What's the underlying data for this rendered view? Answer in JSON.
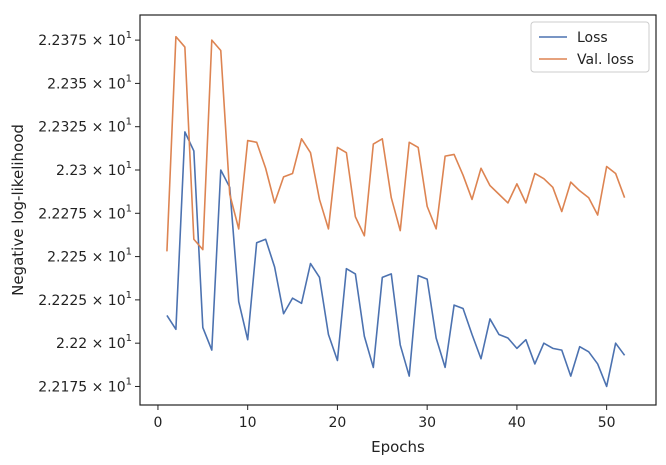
{
  "chart_data": {
    "type": "line",
    "title": "",
    "xlabel": "Epochs",
    "ylabel": "Negative log-likelihood",
    "xlim": [
      -2,
      55.5
    ],
    "ylim": [
      22.1643,
      22.3895
    ],
    "x_ticks": [
      0,
      10,
      20,
      30,
      40,
      50
    ],
    "y_ticks": [
      {
        "value": 22.175,
        "mantissa": "2.2175",
        "base": "10",
        "exp": "1"
      },
      {
        "value": 22.2,
        "mantissa": "2.22",
        "base": "10",
        "exp": "1"
      },
      {
        "value": 22.225,
        "mantissa": "2.2225",
        "base": "10",
        "exp": "1"
      },
      {
        "value": 22.25,
        "mantissa": "2.225",
        "base": "10",
        "exp": "1"
      },
      {
        "value": 22.275,
        "mantissa": "2.2275",
        "base": "10",
        "exp": "1"
      },
      {
        "value": 22.3,
        "mantissa": "2.23",
        "base": "10",
        "exp": "1"
      },
      {
        "value": 22.325,
        "mantissa": "2.2325",
        "base": "10",
        "exp": "1"
      },
      {
        "value": 22.35,
        "mantissa": "2.235",
        "base": "10",
        "exp": "1"
      },
      {
        "value": 22.375,
        "mantissa": "2.2375",
        "base": "10",
        "exp": "1"
      }
    ],
    "grid": false,
    "legend_position": "top-right",
    "x": [
      1,
      2,
      3,
      4,
      5,
      6,
      7,
      8,
      9,
      10,
      11,
      12,
      13,
      14,
      15,
      16,
      17,
      18,
      19,
      20,
      21,
      22,
      23,
      24,
      25,
      26,
      27,
      28,
      29,
      30,
      31,
      32,
      33,
      34,
      35,
      36,
      37,
      38,
      39,
      40,
      41,
      42,
      43,
      44,
      45,
      46,
      47,
      48,
      49,
      50,
      51,
      52
    ],
    "series": [
      {
        "name": "Loss",
        "color": "#4c72b0",
        "values": [
          22.216,
          22.208,
          22.322,
          22.311,
          22.209,
          22.196,
          22.3,
          22.29,
          22.224,
          22.202,
          22.258,
          22.26,
          22.244,
          22.217,
          22.226,
          22.223,
          22.246,
          22.238,
          22.205,
          22.19,
          22.243,
          22.24,
          22.204,
          22.186,
          22.238,
          22.24,
          22.199,
          22.181,
          22.239,
          22.237,
          22.203,
          22.186,
          22.222,
          22.22,
          22.205,
          22.191,
          22.214,
          22.205,
          22.203,
          22.197,
          22.202,
          22.188,
          22.2,
          22.197,
          22.196,
          22.181,
          22.198,
          22.195,
          22.188,
          22.175,
          22.2,
          22.193
        ]
      },
      {
        "name": "Val. loss",
        "color": "#dd8452",
        "values": [
          22.253,
          22.377,
          22.371,
          22.26,
          22.254,
          22.375,
          22.369,
          22.286,
          22.266,
          22.317,
          22.316,
          22.301,
          22.281,
          22.296,
          22.298,
          22.318,
          22.31,
          22.283,
          22.266,
          22.313,
          22.31,
          22.273,
          22.262,
          22.315,
          22.318,
          22.284,
          22.265,
          22.316,
          22.313,
          22.279,
          22.266,
          22.308,
          22.309,
          22.297,
          22.283,
          22.301,
          22.291,
          22.286,
          22.281,
          22.292,
          22.281,
          22.298,
          22.295,
          22.29,
          22.276,
          22.293,
          22.288,
          22.284,
          22.274,
          22.302,
          22.298,
          22.284
        ]
      }
    ]
  }
}
